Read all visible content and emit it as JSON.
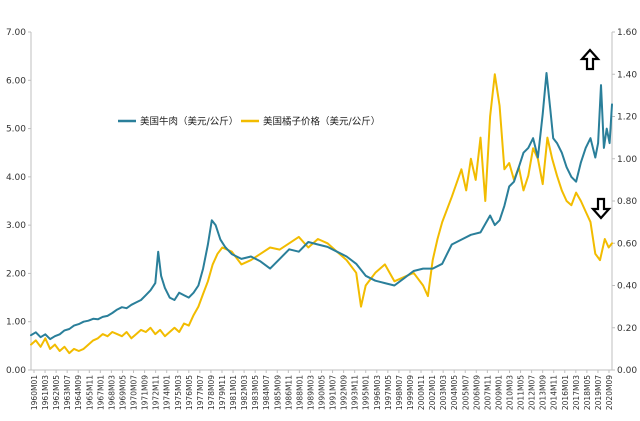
{
  "chart_data": {
    "type": "line",
    "title": "",
    "left_axis": {
      "ylim": [
        0,
        7
      ],
      "ticks": [
        "0.00",
        "1.00",
        "2.00",
        "3.00",
        "4.00",
        "5.00",
        "6.00",
        "7.00"
      ]
    },
    "right_axis": {
      "ylim": [
        0,
        1.6
      ],
      "ticks": [
        "0.00",
        "0.20",
        "0.40",
        "0.60",
        "0.80",
        "1.00",
        "1.20",
        "1.40",
        "1.60"
      ]
    },
    "grid": false,
    "legend_position": "upper-left-inside",
    "colors": {
      "beef": "#2a7f9a",
      "orange": "#f2bc00"
    },
    "annotations": [
      {
        "type": "arrow-up",
        "near_series": "beef",
        "x": 2019.6
      },
      {
        "type": "arrow-down",
        "near_series": "orange",
        "x": 2020.5
      }
    ],
    "x_tick_labels": [
      "1960M01",
      "1961M03",
      "1962M05",
      "1963M07",
      "1964M09",
      "1965M11",
      "1967M01",
      "1968M03",
      "1969M05",
      "1970M07",
      "1971M09",
      "1972M11",
      "1974M01",
      "1975M03",
      "1976M05",
      "1977M07",
      "1978M09",
      "1979M11",
      "1981M01",
      "1982M03",
      "1983M05",
      "1984M07",
      "1985M09",
      "1986M11",
      "1988M01",
      "1989M03",
      "1990M05",
      "1991M07",
      "1992M09",
      "1993M11",
      "1995M01",
      "1996M03",
      "1997M05",
      "1998M07",
      "1999M09",
      "2000M11",
      "2002M01",
      "2003M03",
      "2004M05",
      "2005M07",
      "2006M09",
      "2007M11",
      "2009M01",
      "2010M03",
      "2011M05",
      "2012M07",
      "2013M09",
      "2014M11",
      "2016M01",
      "2017M03",
      "2018M05",
      "2019M07",
      "2020M09"
    ],
    "x_range": [
      1960.0,
      2020.75
    ],
    "series": [
      {
        "name": "美国牛肉（美元/公斤）",
        "axis": "left",
        "color": "#2a7f9a",
        "x": [
          1960.0,
          1960.5,
          1961.0,
          1961.5,
          1962.0,
          1962.5,
          1963.0,
          1963.5,
          1964.0,
          1964.5,
          1965.0,
          1965.5,
          1966.0,
          1966.5,
          1967.0,
          1967.5,
          1968.0,
          1968.5,
          1969.0,
          1969.5,
          1970.0,
          1970.5,
          1971.0,
          1971.5,
          1972.0,
          1972.5,
          1973.0,
          1973.3,
          1973.6,
          1974.0,
          1974.5,
          1975.0,
          1975.5,
          1976.0,
          1976.5,
          1977.0,
          1977.5,
          1978.0,
          1978.5,
          1978.9,
          1979.3,
          1979.8,
          1980.3,
          1981.0,
          1982.0,
          1983.0,
          1984.0,
          1985.0,
          1986.0,
          1987.0,
          1988.0,
          1989.0,
          1990.0,
          1991.0,
          1992.0,
          1993.0,
          1994.0,
          1995.0,
          1996.0,
          1997.0,
          1998.0,
          1999.0,
          2000.0,
          2001.0,
          2002.0,
          2003.0,
          2003.5,
          2004.0,
          2005.0,
          2006.0,
          2007.0,
          2008.0,
          2008.5,
          2009.0,
          2009.5,
          2010.0,
          2010.5,
          2011.0,
          2011.5,
          2012.0,
          2012.5,
          2013.0,
          2013.5,
          2013.9,
          2014.3,
          2014.6,
          2015.0,
          2015.5,
          2016.0,
          2016.5,
          2017.0,
          2017.5,
          2018.0,
          2018.5,
          2019.0,
          2019.3,
          2019.6,
          2019.9,
          2020.2,
          2020.5,
          2020.75
        ],
        "y": [
          0.72,
          0.78,
          0.68,
          0.74,
          0.64,
          0.7,
          0.74,
          0.82,
          0.85,
          0.92,
          0.95,
          1.0,
          1.02,
          1.06,
          1.05,
          1.1,
          1.12,
          1.18,
          1.25,
          1.3,
          1.28,
          1.35,
          1.4,
          1.45,
          1.55,
          1.65,
          1.8,
          2.45,
          1.95,
          1.7,
          1.5,
          1.45,
          1.6,
          1.55,
          1.5,
          1.6,
          1.75,
          2.1,
          2.6,
          3.1,
          3.0,
          2.7,
          2.55,
          2.4,
          2.3,
          2.35,
          2.25,
          2.1,
          2.3,
          2.5,
          2.45,
          2.65,
          2.6,
          2.55,
          2.45,
          2.35,
          2.2,
          1.95,
          1.85,
          1.8,
          1.75,
          1.9,
          2.05,
          2.1,
          2.1,
          2.2,
          2.4,
          2.6,
          2.7,
          2.8,
          2.85,
          3.2,
          3.0,
          3.1,
          3.4,
          3.8,
          3.9,
          4.2,
          4.5,
          4.6,
          4.8,
          4.4,
          5.3,
          6.15,
          5.4,
          4.8,
          4.7,
          4.5,
          4.2,
          4.0,
          3.9,
          4.3,
          4.6,
          4.8,
          4.4,
          4.7,
          5.9,
          4.6,
          5.0,
          4.7,
          5.5
        ]
      },
      {
        "name": "美国橘子价格（美元/公斤）",
        "axis": "right",
        "color": "#f2bc00",
        "x": [
          1960.0,
          1960.5,
          1961.0,
          1961.5,
          1962.0,
          1962.5,
          1963.0,
          1963.5,
          1964.0,
          1964.5,
          1965.0,
          1965.5,
          1966.0,
          1966.5,
          1967.0,
          1967.5,
          1968.0,
          1968.5,
          1969.0,
          1969.5,
          1970.0,
          1970.5,
          1971.0,
          1971.5,
          1972.0,
          1972.5,
          1973.0,
          1973.5,
          1974.0,
          1974.5,
          1975.0,
          1975.5,
          1976.0,
          1976.5,
          1977.0,
          1977.5,
          1978.0,
          1978.5,
          1979.0,
          1979.5,
          1980.0,
          1981.0,
          1982.0,
          1983.0,
          1984.0,
          1985.0,
          1986.0,
          1987.0,
          1988.0,
          1989.0,
          1990.0,
          1991.0,
          1992.0,
          1993.0,
          1994.0,
          1994.5,
          1995.0,
          1996.0,
          1997.0,
          1998.0,
          1999.0,
          2000.0,
          2001.0,
          2001.5,
          2002.0,
          2002.5,
          2003.0,
          2004.0,
          2005.0,
          2005.5,
          2006.0,
          2006.5,
          2007.0,
          2007.5,
          2008.0,
          2008.5,
          2009.0,
          2009.5,
          2010.0,
          2010.5,
          2011.0,
          2011.5,
          2012.0,
          2012.5,
          2013.0,
          2013.5,
          2014.0,
          2014.5,
          2015.0,
          2015.5,
          2016.0,
          2016.5,
          2017.0,
          2017.5,
          2018.0,
          2018.5,
          2019.0,
          2019.5,
          2020.0,
          2020.4,
          2020.75
        ],
        "y": [
          0.12,
          0.14,
          0.11,
          0.15,
          0.1,
          0.12,
          0.09,
          0.11,
          0.08,
          0.1,
          0.09,
          0.1,
          0.12,
          0.14,
          0.15,
          0.17,
          0.16,
          0.18,
          0.17,
          0.16,
          0.18,
          0.15,
          0.17,
          0.19,
          0.18,
          0.2,
          0.17,
          0.19,
          0.16,
          0.18,
          0.2,
          0.18,
          0.22,
          0.21,
          0.26,
          0.3,
          0.36,
          0.42,
          0.5,
          0.55,
          0.58,
          0.56,
          0.5,
          0.52,
          0.55,
          0.58,
          0.57,
          0.6,
          0.63,
          0.58,
          0.62,
          0.6,
          0.56,
          0.52,
          0.46,
          0.3,
          0.4,
          0.46,
          0.5,
          0.42,
          0.44,
          0.46,
          0.4,
          0.35,
          0.52,
          0.62,
          0.7,
          0.82,
          0.95,
          0.85,
          1.0,
          0.9,
          1.1,
          0.8,
          1.2,
          1.4,
          1.25,
          0.95,
          0.98,
          0.9,
          0.96,
          0.85,
          0.92,
          1.05,
          1.0,
          0.88,
          1.1,
          1.0,
          0.92,
          0.85,
          0.8,
          0.78,
          0.84,
          0.8,
          0.75,
          0.7,
          0.55,
          0.52,
          0.62,
          0.58,
          0.6
        ]
      }
    ]
  }
}
